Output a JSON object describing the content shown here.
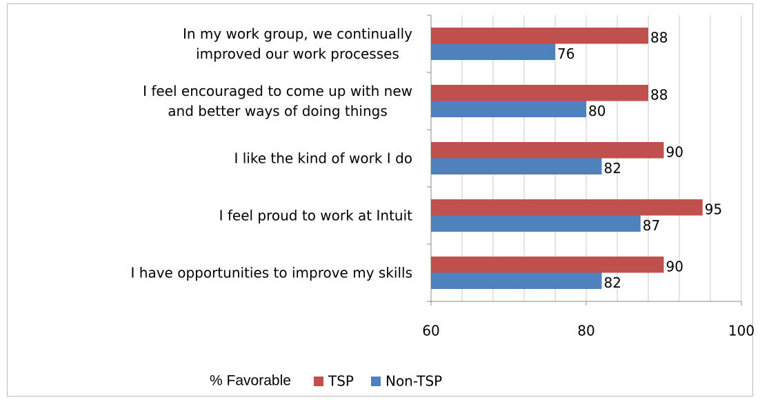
{
  "chart_data": {
    "type": "barh",
    "categories": [
      "In my work group, we continually\nimproved our work processes",
      "I feel encouraged to come up with new\nand better ways of doing things",
      "I like the kind of work I do",
      "I feel proud to work at Intuit",
      "I have opportunities to improve my skills"
    ],
    "series": [
      {
        "name": "TSP",
        "color": "#c0504d",
        "values": [
          88,
          88,
          90,
          95,
          90
        ]
      },
      {
        "name": "Non-TSP",
        "color": "#4f81bd",
        "values": [
          76,
          80,
          82,
          87,
          82
        ]
      }
    ],
    "xlabel": "% Favorable",
    "xlim": [
      60,
      100
    ],
    "xticks": [
      60,
      80,
      100
    ],
    "minor_xticks": [
      64,
      68,
      72,
      76,
      84,
      88,
      92,
      96
    ],
    "grid": true,
    "legend": "bottom"
  }
}
